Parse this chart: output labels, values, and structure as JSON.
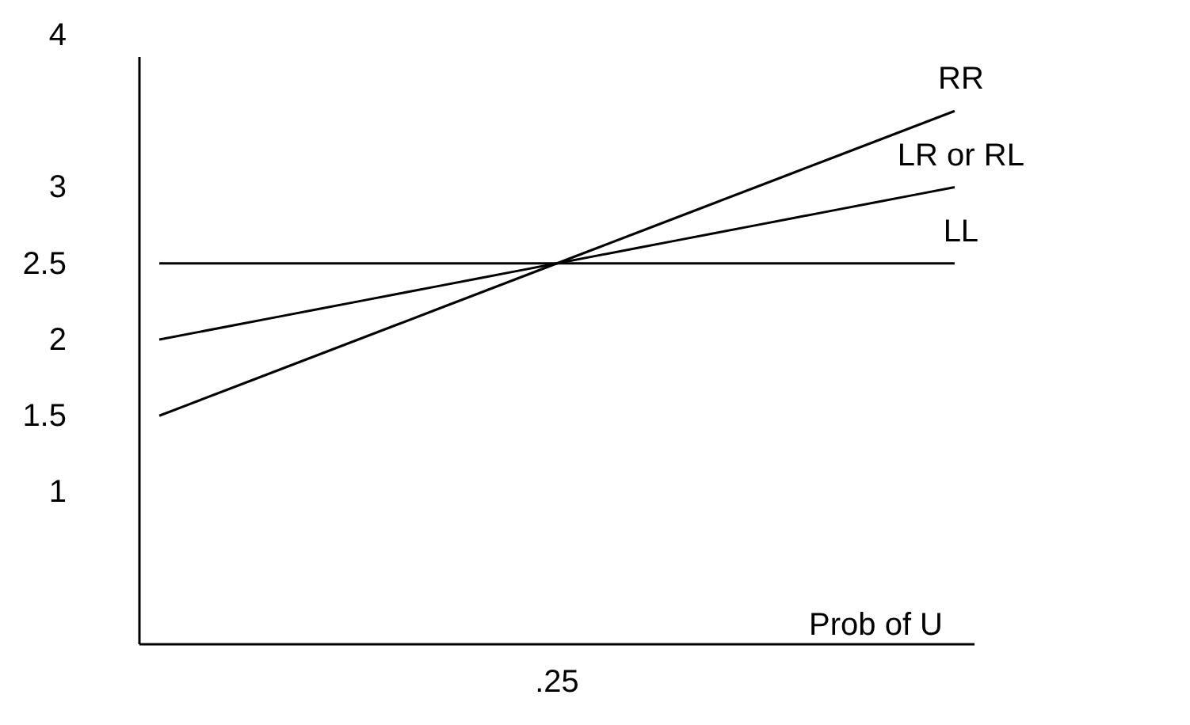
{
  "chart_data": {
    "type": "line",
    "xlabel": "Prob of U",
    "categories": [
      null,
      null,
      null,
      null,
      null,
      null,
      null,
      null,
      null,
      null,
      ".25",
      null,
      null,
      null,
      null,
      null,
      null,
      null,
      null,
      null,
      null
    ],
    "series": [
      {
        "name": "RR",
        "color": "#000000",
        "values": [
          1.5,
          1.6,
          1.7,
          1.8,
          1.9,
          2,
          2.1,
          2.2,
          2.3,
          2.4,
          2.5,
          2.6,
          2.7,
          2.8,
          2.9,
          3,
          3.1,
          3.2,
          3.3,
          3.4,
          3.5
        ]
      },
      {
        "name": "LR or RL",
        "color": "#000000",
        "values": [
          2,
          2.05,
          2.1,
          2.15,
          2.2,
          2.25,
          2.3,
          2.35,
          2.4,
          2.45,
          2.5,
          2.55,
          2.6,
          2.65,
          2.7,
          2.75,
          2.8,
          2.85,
          2.9,
          2.95,
          3
        ]
      },
      {
        "name": "LL",
        "color": "#000000",
        "values": [
          2.5,
          2.5,
          2.5,
          2.5,
          2.5,
          2.5,
          2.5,
          2.5,
          2.5,
          2.5,
          2.5,
          2.5,
          2.5,
          2.5,
          2.5,
          2.5,
          2.5,
          2.5,
          2.5,
          2.5,
          2.5
        ]
      }
    ],
    "ylim": [
      0,
      4
    ],
    "yticks": [
      1,
      1.5,
      2,
      2.5,
      3,
      4
    ],
    "legend": false,
    "grid": false,
    "marker": "none",
    "line_style": "solid"
  }
}
